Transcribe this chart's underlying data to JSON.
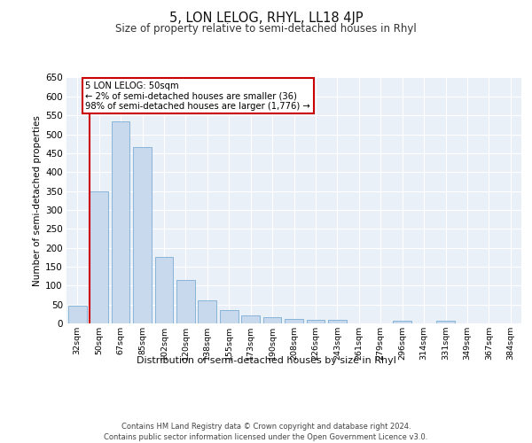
{
  "title": "5, LON LELOG, RHYL, LL18 4JP",
  "subtitle": "Size of property relative to semi-detached houses in Rhyl",
  "xlabel": "Distribution of semi-detached houses by size in Rhyl",
  "ylabel": "Number of semi-detached properties",
  "categories": [
    "32sqm",
    "50sqm",
    "67sqm",
    "85sqm",
    "102sqm",
    "120sqm",
    "138sqm",
    "155sqm",
    "173sqm",
    "190sqm",
    "208sqm",
    "226sqm",
    "243sqm",
    "261sqm",
    "279sqm",
    "296sqm",
    "314sqm",
    "331sqm",
    "349sqm",
    "367sqm",
    "384sqm"
  ],
  "values": [
    46,
    350,
    535,
    465,
    175,
    115,
    60,
    35,
    20,
    16,
    12,
    10,
    10,
    0,
    0,
    6,
    0,
    7,
    0,
    0,
    0
  ],
  "bar_color": "#c9d9ed",
  "bar_edge_color": "#7aadd4",
  "highlight_bar_index": 1,
  "annotation_title": "5 LON LELOG: 50sqm",
  "annotation_line1": "← 2% of semi-detached houses are smaller (36)",
  "annotation_line2": "98% of semi-detached houses are larger (1,776) →",
  "annotation_box_color": "#cc0000",
  "ylim": [
    0,
    650
  ],
  "yticks": [
    0,
    50,
    100,
    150,
    200,
    250,
    300,
    350,
    400,
    450,
    500,
    550,
    600,
    650
  ],
  "background_color": "#eaf0f8",
  "grid_color": "#ffffff",
  "footer_line1": "Contains HM Land Registry data © Crown copyright and database right 2024.",
  "footer_line2": "Contains public sector information licensed under the Open Government Licence v3.0."
}
